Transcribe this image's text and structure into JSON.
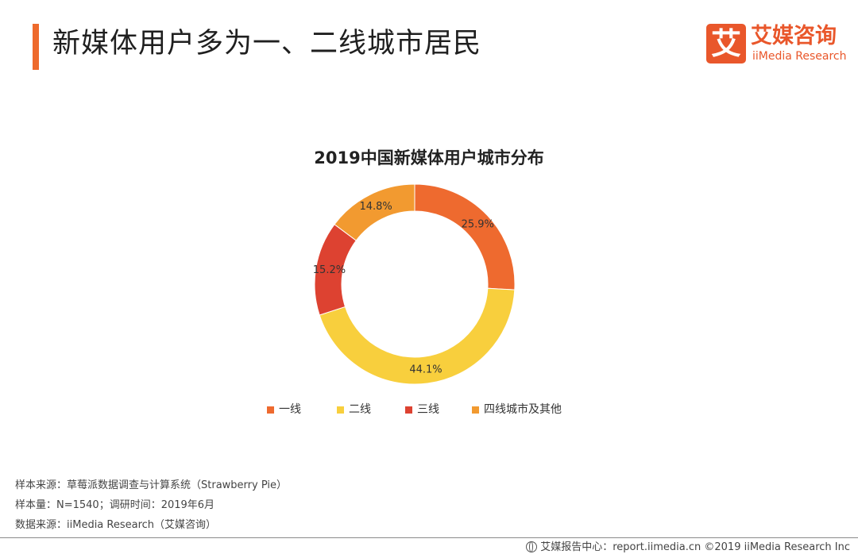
{
  "header": {
    "title": "新媒体用户多为一、二线城市居民",
    "accent_color": "#ee6a2c"
  },
  "logo": {
    "mark": "艾",
    "name_cn": "艾媒咨询",
    "name_en": "iiMedia Research",
    "color": "#e9572b"
  },
  "chart_data": {
    "type": "pie",
    "variant": "donut",
    "title": "2019中国新媒体用户城市分布",
    "categories": [
      "一线",
      "二线",
      "三线",
      "四线城市及其他"
    ],
    "values": [
      25.9,
      44.1,
      15.2,
      14.8
    ],
    "value_labels": [
      "25.9%",
      "44.1%",
      "15.2%",
      "14.8%"
    ],
    "colors": [
      "#ee6a2f",
      "#f8cf3d",
      "#dd4231",
      "#f29a30"
    ],
    "start_angle_deg": 0,
    "direction": "clockwise",
    "legend_position": "bottom"
  },
  "notes": [
    "样本来源：草莓派数据调查与计算系统（Strawberry Pie）",
    "样本量：N=1540；调研时间：2019年6月",
    "数据来源：iiMedia Research（艾媒咨询）"
  ],
  "footer": {
    "text": "艾媒报告中心：report.iimedia.cn ©2019 iiMedia Research Inc",
    "icon": "globe-icon"
  }
}
